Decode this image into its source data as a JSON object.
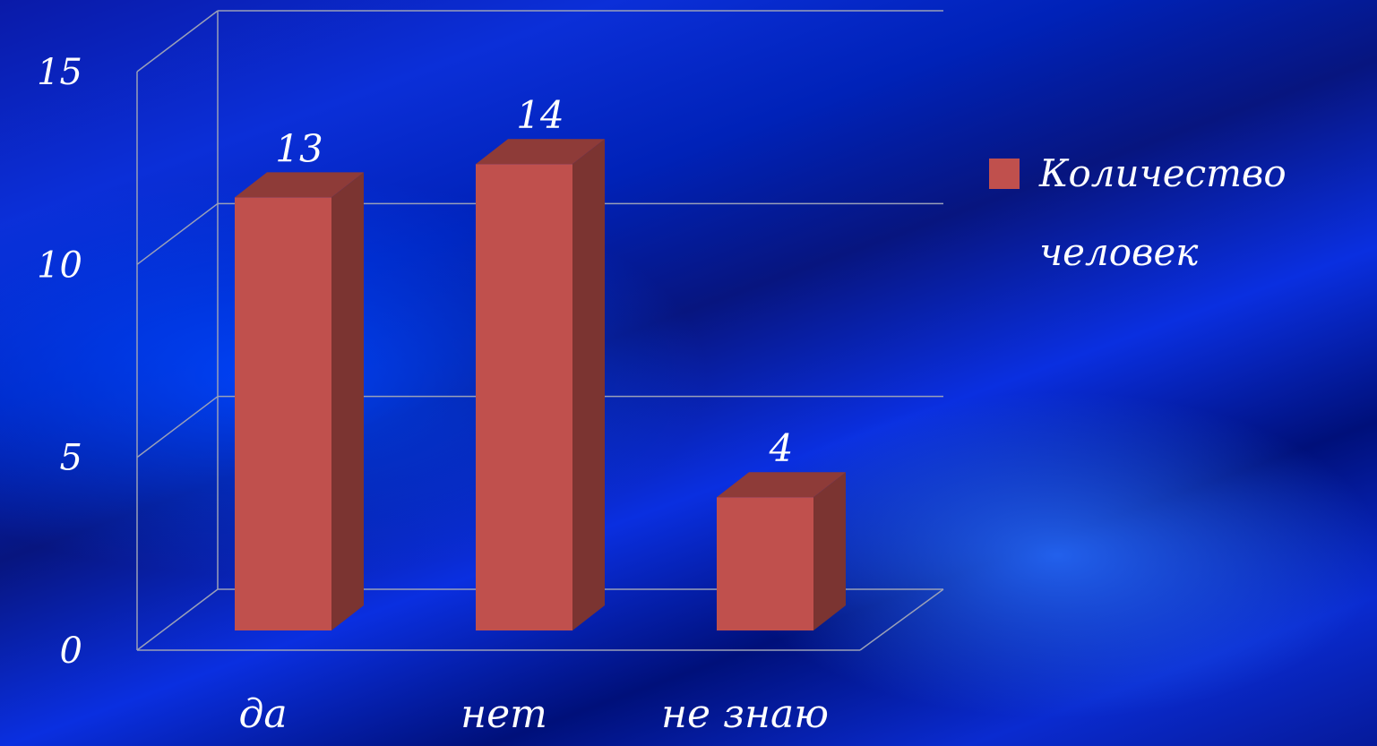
{
  "chart_data": {
    "type": "bar",
    "categories": [
      "да",
      "нет",
      "не знаю"
    ],
    "series": [
      {
        "name": "Количество человек",
        "values": [
          13,
          14,
          4
        ],
        "color": "#c0504d"
      }
    ],
    "data_labels": [
      "13",
      "14",
      "4"
    ],
    "y_ticks": [
      "0",
      "5",
      "10",
      "15"
    ],
    "ylim": [
      0,
      15
    ],
    "grid": true,
    "style": "3d-column",
    "legend_position": "right"
  }
}
